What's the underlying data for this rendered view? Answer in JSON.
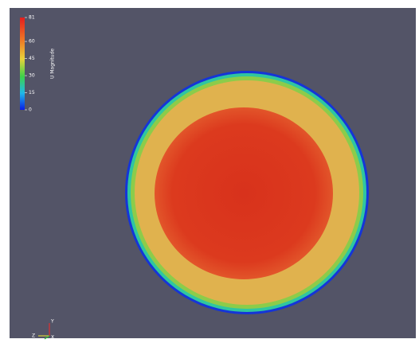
{
  "colorbar": {
    "title": "U Magnitude",
    "range": [
      0,
      81
    ],
    "ticks": [
      0,
      15,
      30,
      45,
      60,
      81
    ]
  },
  "axes": {
    "labels": [
      "Y",
      "Z",
      "X"
    ]
  }
}
